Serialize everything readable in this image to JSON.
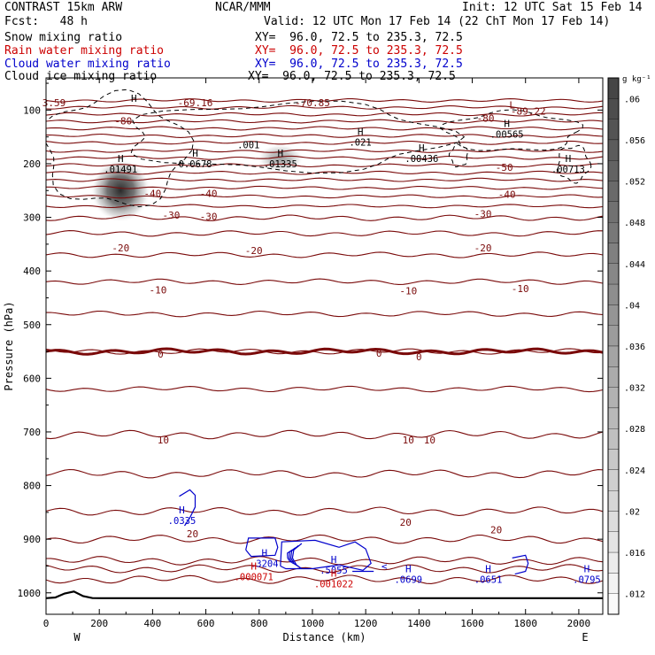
{
  "header": {
    "line1_left": "CONTRAST 15km ARW",
    "line1_center": "NCAR/MMM",
    "line1_right": "Init: 12 UTC Sat 15 Feb 14",
    "fcst": "Fcst:   48 h",
    "valid": "Valid: 12 UTC Mon 17 Feb 14 (22 ChT Mon 17 Feb 14)",
    "fields": [
      {
        "label": "Snow mixing ratio",
        "xy": "XY=  96.0, 72.5 to 235.3, 72.5",
        "color": "#000000"
      },
      {
        "label": "Rain water mixing ratio",
        "xy": "XY=  96.0, 72.5 to 235.3, 72.5",
        "color": "#cc0000"
      },
      {
        "label": "Cloud water mixing ratio",
        "xy": "XY=  96.0, 72.5 to 235.3, 72.5",
        "color": "#0000cc"
      },
      {
        "label": "Cloud ice mixing ratio",
        "xy": "XY=  96.0, 72.5 to 235.3, 72.5",
        "color": "#000000"
      }
    ]
  },
  "chart_data": {
    "type": "cross-section contour",
    "xlabel": "Distance (km)",
    "ylabel": "Pressure (hPa)",
    "xlim": [
      0,
      2090
    ],
    "ylim": [
      40,
      1040
    ],
    "xticks": [
      0,
      200,
      400,
      600,
      800,
      1000,
      1200,
      1400,
      1600,
      1800,
      2000
    ],
    "yticks": [
      100,
      200,
      300,
      400,
      500,
      600,
      700,
      800,
      900,
      1000
    ],
    "x_endpoint_labels": {
      "left": "W",
      "right": "E"
    },
    "colorbar": {
      "unit": "g kg⁻¹",
      "ticks": [
        ".06",
        ".056",
        ".052",
        ".048",
        ".044",
        ".04",
        ".036",
        ".032",
        ".028",
        ".024",
        ".02",
        ".016",
        ".012"
      ],
      "tick_values": [
        0.06,
        0.056,
        0.052,
        0.048,
        0.044,
        0.04,
        0.036,
        0.032,
        0.028,
        0.024,
        0.02,
        0.016,
        0.012
      ],
      "min": 0.01,
      "max": 0.062
    },
    "snow_max": {
      "x": 280,
      "p": 250,
      "value": 0.0149
    },
    "isotherm_labels": [
      {
        "text": "-80",
        "x": 290,
        "p": 120
      },
      {
        "text": "-80",
        "x": 1650,
        "p": 115
      },
      {
        "text": "-50",
        "x": 1720,
        "p": 207
      },
      {
        "text": "-40",
        "x": 400,
        "p": 255
      },
      {
        "text": "-40",
        "x": 610,
        "p": 255
      },
      {
        "text": "-40",
        "x": 1730,
        "p": 257
      },
      {
        "text": "-30",
        "x": 470,
        "p": 296
      },
      {
        "text": "-30",
        "x": 610,
        "p": 298
      },
      {
        "text": "-30",
        "x": 1640,
        "p": 293
      },
      {
        "text": "-20",
        "x": 280,
        "p": 357
      },
      {
        "text": "-20",
        "x": 780,
        "p": 362
      },
      {
        "text": "-20",
        "x": 1640,
        "p": 357
      },
      {
        "text": "-10",
        "x": 420,
        "p": 435
      },
      {
        "text": "-10",
        "x": 1360,
        "p": 437
      },
      {
        "text": "-10",
        "x": 1780,
        "p": 433
      },
      {
        "text": "0",
        "x": 430,
        "p": 555
      },
      {
        "text": "0",
        "x": 1250,
        "p": 553
      },
      {
        "text": "0",
        "x": 1400,
        "p": 560
      },
      {
        "text": "10",
        "x": 440,
        "p": 715
      },
      {
        "text": "10",
        "x": 1360,
        "p": 715
      },
      {
        "text": "10",
        "x": 1440,
        "p": 715
      },
      {
        "text": "20",
        "x": 550,
        "p": 890
      },
      {
        "text": "20",
        "x": 1350,
        "p": 868
      },
      {
        "text": "20",
        "x": 1690,
        "p": 882
      }
    ],
    "top_labels": [
      {
        "text": "3.59",
        "x": 30,
        "p": 86
      },
      {
        "text": "-69.16",
        "x": 560,
        "p": 86
      },
      {
        "text": "-70.85",
        "x": 1000,
        "p": 86
      },
      {
        "text": "-89.22",
        "x": 1810,
        "p": 102
      },
      {
        "text": "L",
        "x": 1750,
        "p": 90
      }
    ],
    "maxima": [
      {
        "kind": "H",
        "value": ".01491",
        "x": 280,
        "p": 190,
        "color": "#000000"
      },
      {
        "kind": "H",
        "value": "0.0678",
        "x": 560,
        "p": 180,
        "color": "#000000"
      },
      {
        "kind": "H",
        "value": ".01335",
        "x": 880,
        "p": 180,
        "color": "#000000"
      },
      {
        "kind": "H",
        "value": ".021",
        "x": 1180,
        "p": 140,
        "color": "#000000"
      },
      {
        "kind": "H",
        "value": ".00436",
        "x": 1410,
        "p": 170,
        "color": "#000000"
      },
      {
        "kind": "H",
        "value": ".00565",
        "x": 1730,
        "p": 125,
        "color": "#000000"
      },
      {
        "kind": "H",
        "value": ".00713",
        "x": 1960,
        "p": 190,
        "color": "#000000"
      },
      {
        "kind": "",
        "value": ".001",
        "x": 760,
        "p": 145,
        "color": "#000000"
      },
      {
        "kind": "H",
        "value": ".0335",
        "x": 510,
        "p": 845,
        "color": "#0000cc"
      },
      {
        "kind": "H",
        "value": ".3204",
        "x": 820,
        "p": 925,
        "color": "#0000cc"
      },
      {
        "kind": "H",
        "value": ".000071",
        "x": 780,
        "p": 950,
        "color": "#cc0000"
      },
      {
        "kind": "H",
        "value": ".5055",
        "x": 1080,
        "p": 938,
        "color": "#0000cc"
      },
      {
        "kind": "H",
        "value": ".001022",
        "x": 1080,
        "p": 963,
        "color": "#cc0000"
      },
      {
        "kind": "H",
        "value": ".0699",
        "x": 1360,
        "p": 955,
        "color": "#0000cc"
      },
      {
        "kind": "H",
        "value": ".0651",
        "x": 1660,
        "p": 955,
        "color": "#0000cc"
      },
      {
        "kind": "H",
        "value": ".0795",
        "x": 2030,
        "p": 955,
        "color": "#0000cc"
      }
    ],
    "small_marks": [
      {
        "text": "<",
        "x": 1270,
        "p": 950,
        "color": "#0000cc"
      },
      {
        "text": "H",
        "x": 330,
        "p": 78,
        "color": "#000000"
      }
    ],
    "isotherm_levels": [
      82,
      95,
      108,
      121,
      134,
      148,
      161,
      176,
      189,
      203,
      217,
      230,
      245,
      261,
      279,
      301,
      330,
      370,
      420,
      480,
      550,
      620,
      705,
      778,
      848,
      900,
      940,
      955,
      975
    ],
    "freezing_level": 550,
    "surface_pressure": 1010,
    "colors": {
      "isotherm": "#7a0a0a",
      "surface": "#000000",
      "rain": "#cc0000",
      "cloud_water": "#0000cc",
      "cloud_ice": "#000000"
    }
  }
}
